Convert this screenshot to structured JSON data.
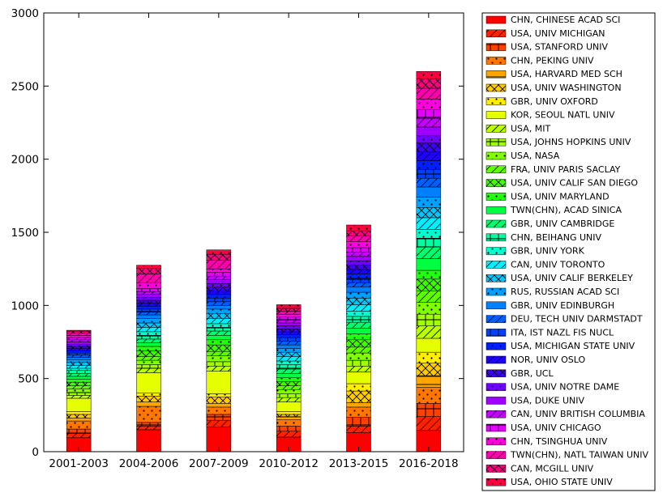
{
  "chart_data": {
    "type": "bar",
    "stacked": true,
    "title": "",
    "xlabel": "",
    "ylabel": "",
    "ylim": [
      0,
      3000
    ],
    "yticks": [
      0,
      500,
      1000,
      1500,
      2000,
      2500,
      3000
    ],
    "grid": false,
    "legend_placement": "outside-right",
    "categories": [
      "2001-2003",
      "2004-2006",
      "2007-2009",
      "2010-2012",
      "2013-2015",
      "2016-2018"
    ],
    "series": [
      {
        "name": "CHN, CHINESE ACAD SCI",
        "color": "#ff0000",
        "hatch": "none",
        "values": [
          95,
          150,
          170,
          100,
          130,
          145
        ]
      },
      {
        "name": "USA, UNIV MICHIGAN",
        "color": "#ff2000",
        "hatch": "diag",
        "values": [
          30,
          25,
          45,
          40,
          45,
          95
        ]
      },
      {
        "name": "USA, STANFORD UNIV",
        "color": "#ff4000",
        "hatch": "hv",
        "values": [
          30,
          25,
          40,
          35,
          60,
          90
        ]
      },
      {
        "name": "CHN, PEKING UNIV",
        "color": "#ff7700",
        "hatch": "dots",
        "values": [
          55,
          110,
          50,
          45,
          70,
          110
        ]
      },
      {
        "name": "USA, HARVARD MED SCH",
        "color": "#ffa500",
        "hatch": "horiz",
        "values": [
          20,
          30,
          25,
          20,
          30,
          80
        ]
      },
      {
        "name": "USA, UNIV WASHINGTON",
        "color": "#ffcc00",
        "hatch": "xx",
        "values": [
          25,
          40,
          45,
          15,
          80,
          85
        ]
      },
      {
        "name": "GBR, UNIV OXFORD",
        "color": "#ffee00",
        "hatch": "dots",
        "values": [
          20,
          20,
          20,
          20,
          50,
          75
        ]
      },
      {
        "name": "KOR, SEOUL NATL UNIV",
        "color": "#e6ff00",
        "hatch": "none",
        "values": [
          90,
          140,
          155,
          65,
          80,
          95
        ]
      },
      {
        "name": "USA, MIT",
        "color": "#bbff00",
        "hatch": "diag",
        "values": [
          20,
          30,
          35,
          30,
          40,
          85
        ]
      },
      {
        "name": "USA, JOHNS HOPKINS UNIV",
        "color": "#a0ff00",
        "hatch": "hv",
        "values": [
          20,
          25,
          30,
          25,
          40,
          80
        ]
      },
      {
        "name": "USA, NASA",
        "color": "#80ff00",
        "hatch": "dots",
        "values": [
          25,
          30,
          40,
          30,
          50,
          80
        ]
      },
      {
        "name": "FRA, UNIV PARIS SACLAY",
        "color": "#60ff00",
        "hatch": "diag",
        "values": [
          20,
          25,
          30,
          25,
          40,
          80
        ]
      },
      {
        "name": "USA, UNIV CALIF SAN DIEGO",
        "color": "#3aff00",
        "hatch": "xx",
        "values": [
          25,
          40,
          45,
          30,
          50,
          80
        ]
      },
      {
        "name": "USA, UNIV MARYLAND",
        "color": "#20ff10",
        "hatch": "dots",
        "values": [
          20,
          30,
          35,
          25,
          40,
          60
        ]
      },
      {
        "name": "TWN(CHN), ACAD SINICA",
        "color": "#00ff40",
        "hatch": "none",
        "values": [
          20,
          25,
          30,
          30,
          40,
          80
        ]
      },
      {
        "name": "GBR, UNIV CAMBRIDGE",
        "color": "#00ff70",
        "hatch": "diag",
        "values": [
          20,
          25,
          30,
          30,
          40,
          80
        ]
      },
      {
        "name": "CHN, BEIHANG UNIV",
        "color": "#00ffa0",
        "hatch": "hv",
        "values": [
          20,
          25,
          25,
          30,
          40,
          60
        ]
      },
      {
        "name": "GBR, UNIV YORK",
        "color": "#00ffd0",
        "hatch": "dots",
        "values": [
          15,
          25,
          25,
          25,
          35,
          60
        ]
      },
      {
        "name": "CAN, UNIV TORONTO",
        "color": "#00f0ff",
        "hatch": "diag",
        "values": [
          20,
          30,
          35,
          30,
          45,
          80
        ]
      },
      {
        "name": "USA, UNIV CALIF BERKELEY",
        "color": "#00c8ff",
        "hatch": "xx",
        "values": [
          20,
          30,
          35,
          30,
          45,
          70
        ]
      },
      {
        "name": "RUS, RUSSIAN ACAD SCI",
        "color": "#00a0ff",
        "hatch": "dots",
        "values": [
          20,
          30,
          30,
          25,
          40,
          70
        ]
      },
      {
        "name": "GBR, UNIV EDINBURGH",
        "color": "#0080ff",
        "hatch": "none",
        "values": [
          15,
          25,
          25,
          25,
          35,
          70
        ]
      },
      {
        "name": "DEU, TECH UNIV DARMSTADT",
        "color": "#0060ff",
        "hatch": "diag",
        "values": [
          15,
          20,
          25,
          25,
          30,
          60
        ]
      },
      {
        "name": "ITA, IST NAZL FIS NUCL",
        "color": "#0040ff",
        "hatch": "hv",
        "values": [
          15,
          20,
          25,
          25,
          30,
          60
        ]
      },
      {
        "name": "USA, MICHIGAN STATE UNIV",
        "color": "#0020ff",
        "hatch": "dots",
        "values": [
          15,
          20,
          25,
          20,
          30,
          60
        ]
      },
      {
        "name": "NOR, UNIV OSLO",
        "color": "#2000ff",
        "hatch": "diag",
        "values": [
          15,
          20,
          25,
          20,
          30,
          60
        ]
      },
      {
        "name": "GBR, UCL",
        "color": "#4000ff",
        "hatch": "xx",
        "values": [
          15,
          20,
          25,
          20,
          30,
          60
        ]
      },
      {
        "name": "USA, UNIV NOTRE DAME",
        "color": "#7000ff",
        "hatch": "dots",
        "values": [
          15,
          20,
          25,
          20,
          30,
          50
        ]
      },
      {
        "name": "USA, DUKE UNIV",
        "color": "#a000ff",
        "hatch": "none",
        "values": [
          15,
          20,
          25,
          20,
          30,
          60
        ]
      },
      {
        "name": "CAN, UNIV BRITISH COLUMBIA",
        "color": "#c800ff",
        "hatch": "diag",
        "values": [
          15,
          20,
          25,
          20,
          30,
          60
        ]
      },
      {
        "name": "USA, UNIV CHICAGO",
        "color": "#e600ff",
        "hatch": "hv",
        "values": [
          15,
          20,
          25,
          20,
          30,
          60
        ]
      },
      {
        "name": "CHN, TSINGHUA UNIV",
        "color": "#ff00e0",
        "hatch": "dots",
        "values": [
          15,
          40,
          25,
          20,
          40,
          70
        ]
      },
      {
        "name": "TWN(CHN), NATL TAIWAN UNIV",
        "color": "#ff00b0",
        "hatch": "diag",
        "values": [
          15,
          60,
          60,
          20,
          40,
          75
        ]
      },
      {
        "name": "CAN, MCGILL UNIV",
        "color": "#ff0080",
        "hatch": "xx",
        "values": [
          15,
          40,
          40,
          20,
          35,
          65
        ]
      },
      {
        "name": "USA, OHIO STATE UNIV",
        "color": "#ff0040",
        "hatch": "dots",
        "values": [
          5,
          20,
          30,
          25,
          40,
          50
        ]
      }
    ]
  }
}
